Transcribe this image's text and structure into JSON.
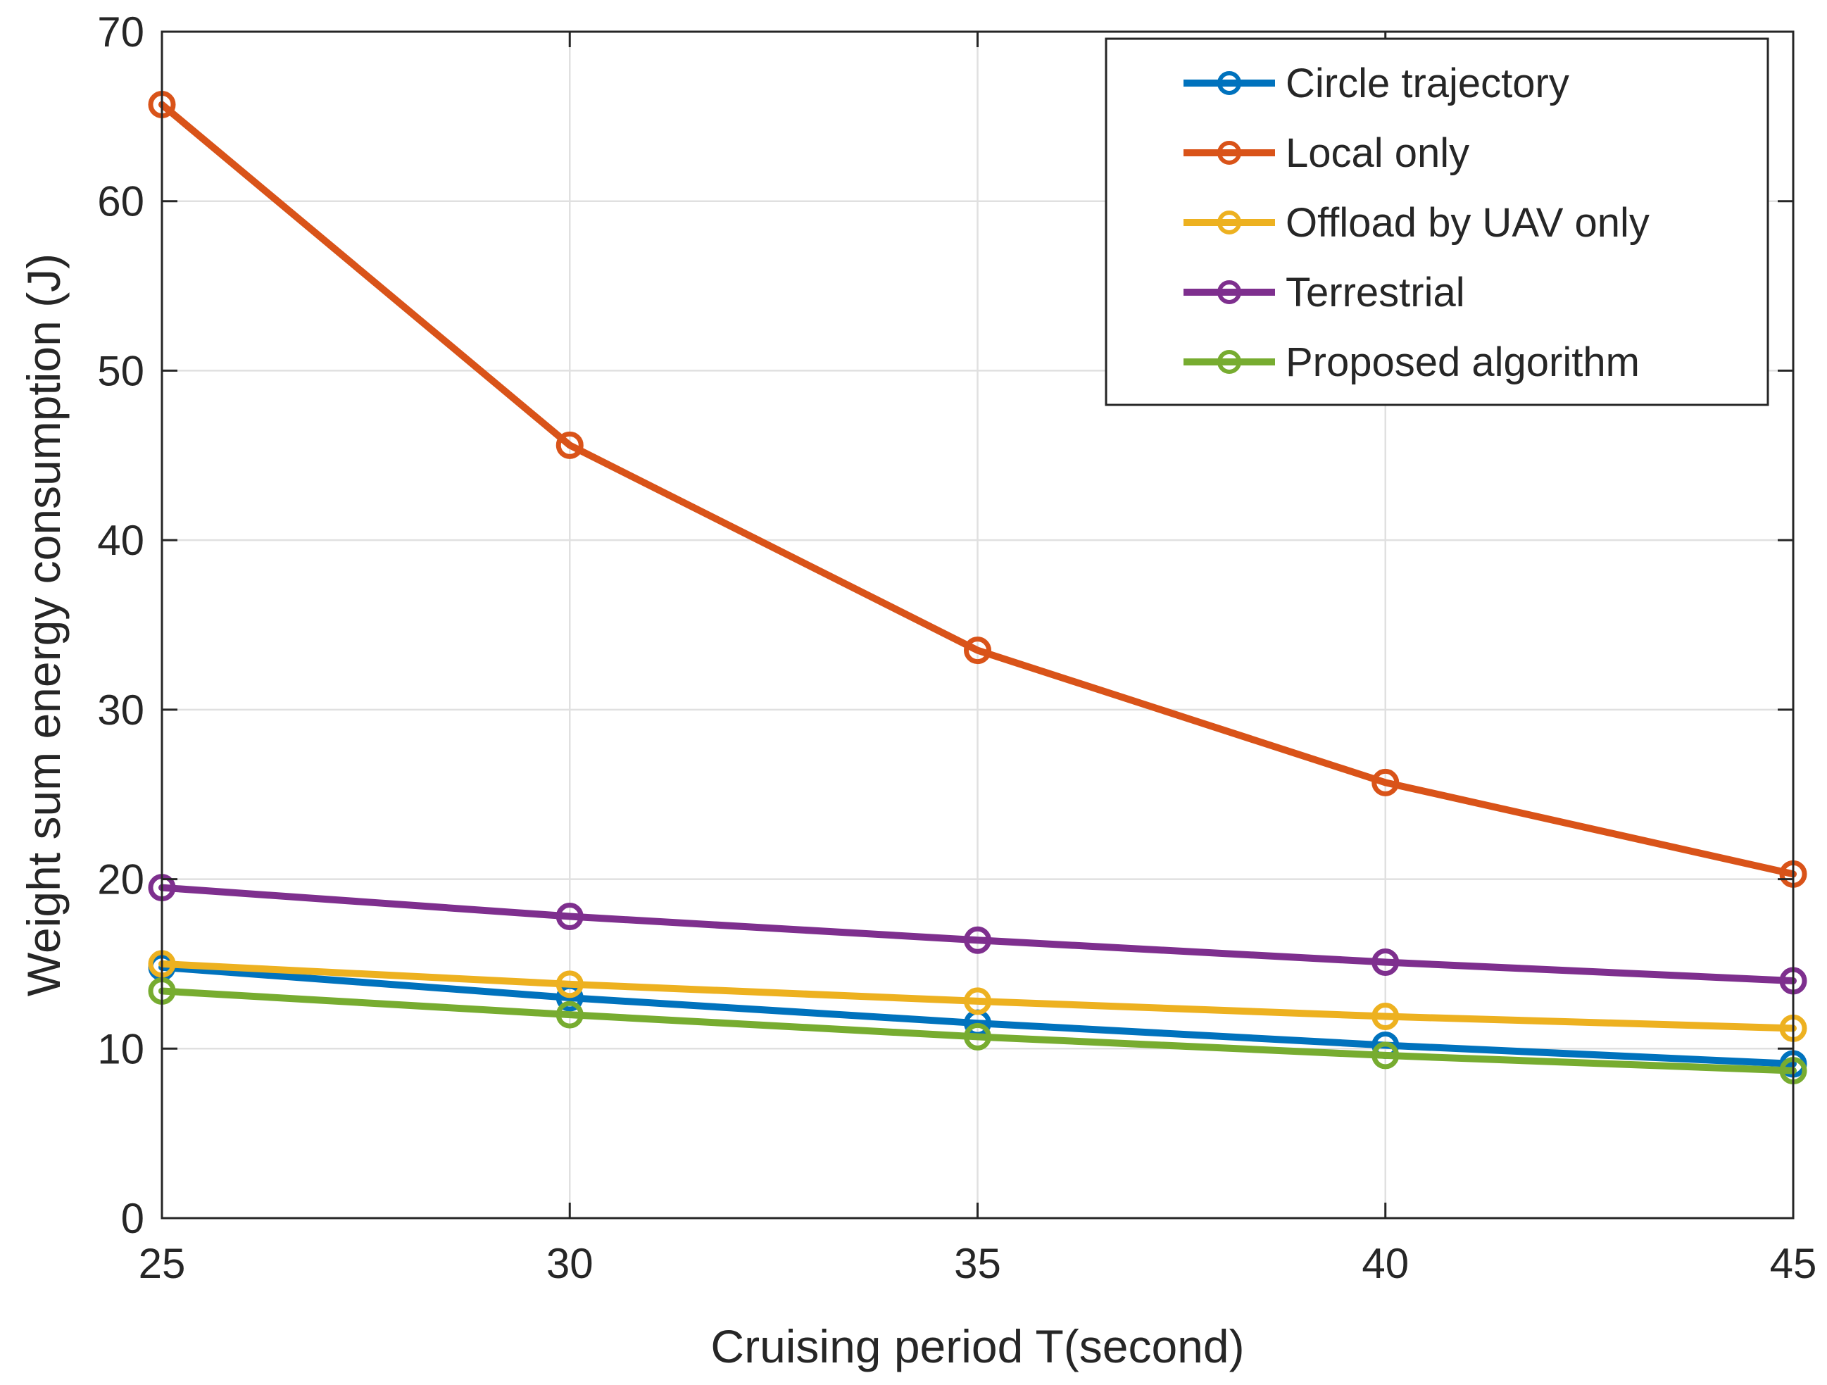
{
  "chart_data": {
    "type": "line",
    "title": "",
    "xlabel": "Cruising period T(second)",
    "ylabel": "Weight sum energy consumption (J)",
    "x": [
      25,
      30,
      35,
      40,
      45
    ],
    "xlim": [
      25,
      45
    ],
    "ylim": [
      0,
      70
    ],
    "xticks": [
      "25",
      "30",
      "35",
      "40",
      "45"
    ],
    "yticks": [
      "0",
      "10",
      "20",
      "30",
      "40",
      "50",
      "60",
      "70"
    ],
    "grid": true,
    "legend_position": "top-right",
    "series": [
      {
        "name": "Circle trajectory",
        "color": "#0072BD",
        "values": [
          14.8,
          13.0,
          11.5,
          10.2,
          9.1
        ]
      },
      {
        "name": "Local only",
        "color": "#D95319",
        "values": [
          65.7,
          45.6,
          33.5,
          25.7,
          20.3
        ]
      },
      {
        "name": "Offload by UAV only",
        "color": "#EDB120",
        "values": [
          15.0,
          13.8,
          12.8,
          11.9,
          11.2
        ]
      },
      {
        "name": "Terrestrial",
        "color": "#7E2F8E",
        "values": [
          19.5,
          17.8,
          16.4,
          15.1,
          14.0
        ]
      },
      {
        "name": "Proposed algorithm",
        "color": "#77AC30",
        "values": [
          13.4,
          12.0,
          10.7,
          9.6,
          8.7
        ]
      }
    ]
  }
}
